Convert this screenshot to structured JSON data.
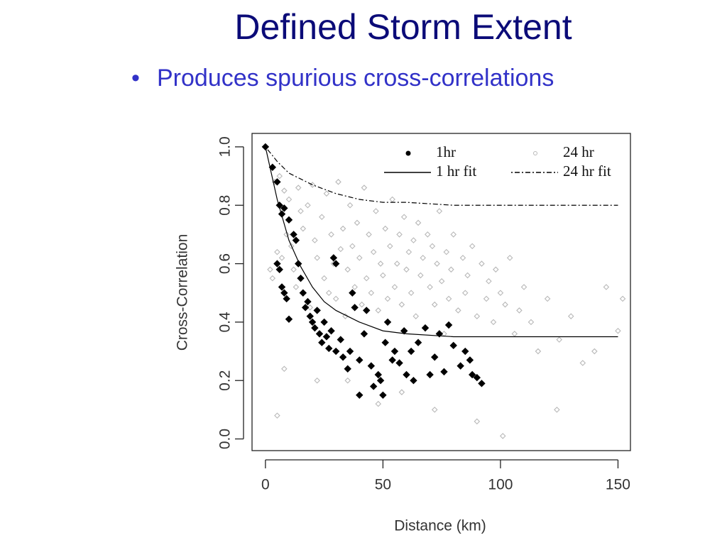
{
  "slide": {
    "title": "Defined Storm Extent",
    "bullet": "Produces spurious cross-correlations"
  },
  "chart_data": {
    "type": "scatter",
    "x_label": "Distance (km)",
    "y_label": "Cross-Correlation",
    "xlim": [
      -5.7,
      155.3
    ],
    "ylim": [
      -0.04,
      1.046
    ],
    "xticks": [
      0,
      50,
      100,
      150
    ],
    "yticks": [
      {
        "value": 0,
        "label": "0.0"
      },
      {
        "value": 0.2,
        "label": "0.2"
      },
      {
        "value": 0.4,
        "label": "0.4"
      },
      {
        "value": 0.6,
        "label": "0.6"
      },
      {
        "value": 0.8,
        "label": "0.8"
      },
      {
        "value": 1,
        "label": "1.0"
      }
    ],
    "legend": "top-right",
    "series": [
      {
        "name": "1hr",
        "style": "points",
        "color": "#000000",
        "x": [
          0,
          3,
          5,
          6,
          7,
          8,
          10,
          5,
          6,
          7,
          8,
          9,
          10,
          12,
          13,
          14,
          15,
          16,
          17,
          18,
          19,
          20,
          21,
          22,
          23,
          24,
          25,
          26,
          27,
          28,
          29,
          30,
          30,
          32,
          33,
          35,
          36,
          37,
          38,
          40,
          40,
          42,
          43,
          45,
          46,
          48,
          49,
          50,
          51,
          52,
          54,
          55,
          57,
          59,
          60,
          62,
          63,
          65,
          68,
          70,
          72,
          74,
          76,
          78,
          80,
          83,
          85,
          87,
          88,
          90,
          92
        ],
        "values": [
          1.0,
          0.93,
          0.88,
          0.8,
          0.77,
          0.79,
          0.75,
          0.6,
          0.58,
          0.52,
          0.5,
          0.48,
          0.41,
          0.7,
          0.68,
          0.6,
          0.55,
          0.5,
          0.45,
          0.47,
          0.42,
          0.4,
          0.38,
          0.44,
          0.36,
          0.33,
          0.4,
          0.35,
          0.31,
          0.37,
          0.62,
          0.6,
          0.3,
          0.34,
          0.28,
          0.24,
          0.3,
          0.5,
          0.45,
          0.27,
          0.15,
          0.36,
          0.44,
          0.25,
          0.18,
          0.22,
          0.2,
          0.15,
          0.33,
          0.4,
          0.27,
          0.3,
          0.26,
          0.37,
          0.22,
          0.3,
          0.2,
          0.33,
          0.38,
          0.22,
          0.28,
          0.36,
          0.23,
          0.39,
          0.32,
          0.25,
          0.3,
          0.27,
          0.22,
          0.21,
          0.19
        ]
      },
      {
        "name": "24 hr",
        "style": "points",
        "color": "#b8b8b8",
        "x": [
          2,
          3,
          4,
          5,
          6,
          7,
          8,
          9,
          10,
          11,
          12,
          13,
          14,
          15,
          16,
          18,
          19,
          20,
          21,
          22,
          24,
          25,
          26,
          27,
          28,
          29,
          30,
          31,
          32,
          33,
          34,
          35,
          36,
          37,
          38,
          39,
          40,
          41,
          42,
          43,
          44,
          45,
          46,
          47,
          48,
          49,
          50,
          51,
          52,
          53,
          54,
          55,
          56,
          57,
          58,
          59,
          60,
          61,
          62,
          63,
          64,
          65,
          66,
          67,
          68,
          69,
          70,
          71,
          72,
          73,
          74,
          75,
          76,
          77,
          78,
          79,
          80,
          82,
          84,
          85,
          86,
          88,
          90,
          92,
          94,
          95,
          97,
          98,
          100,
          102,
          104,
          106,
          108,
          110,
          113,
          116,
          120,
          125,
          130,
          135,
          140,
          145,
          150,
          152,
          5,
          8,
          22,
          35,
          48,
          58,
          72,
          90,
          101,
          124
        ],
        "values": [
          0.58,
          0.55,
          0.88,
          0.64,
          0.9,
          0.62,
          0.85,
          0.7,
          0.82,
          0.66,
          0.58,
          0.52,
          0.86,
          0.78,
          0.72,
          0.8,
          0.45,
          0.87,
          0.68,
          0.62,
          0.76,
          0.55,
          0.84,
          0.5,
          0.7,
          0.6,
          0.48,
          0.88,
          0.65,
          0.72,
          0.42,
          0.58,
          0.8,
          0.66,
          0.52,
          0.74,
          0.62,
          0.46,
          0.86,
          0.55,
          0.7,
          0.5,
          0.64,
          0.78,
          0.44,
          0.6,
          0.56,
          0.72,
          0.48,
          0.66,
          0.82,
          0.52,
          0.6,
          0.7,
          0.46,
          0.76,
          0.58,
          0.64,
          0.5,
          0.68,
          0.42,
          0.74,
          0.56,
          0.62,
          0.38,
          0.7,
          0.52,
          0.66,
          0.46,
          0.6,
          0.78,
          0.54,
          0.36,
          0.64,
          0.48,
          0.58,
          0.7,
          0.44,
          0.62,
          0.5,
          0.56,
          0.66,
          0.42,
          0.6,
          0.48,
          0.54,
          0.4,
          0.58,
          0.5,
          0.46,
          0.62,
          0.36,
          0.44,
          0.52,
          0.4,
          0.3,
          0.48,
          0.34,
          0.42,
          0.26,
          0.3,
          0.52,
          0.37,
          0.48,
          0.08,
          0.24,
          0.2,
          0.2,
          0.12,
          0.16,
          0.1,
          0.06,
          0.01,
          0.1
        ]
      },
      {
        "name": "1 hr fit",
        "style": "line",
        "color": "#000000",
        "x": [
          0,
          5,
          10,
          15,
          20,
          25,
          30,
          40,
          50,
          60,
          80,
          100,
          150
        ],
        "values": [
          1.0,
          0.82,
          0.68,
          0.59,
          0.52,
          0.47,
          0.44,
          0.4,
          0.37,
          0.36,
          0.35,
          0.35,
          0.35
        ]
      },
      {
        "name": "24 hr fit",
        "style": "dotdash",
        "color": "#000000",
        "x": [
          0,
          5,
          10,
          15,
          20,
          30,
          40,
          50,
          60,
          80,
          100,
          150
        ],
        "values": [
          1.0,
          0.95,
          0.91,
          0.89,
          0.87,
          0.84,
          0.82,
          0.81,
          0.81,
          0.8,
          0.8,
          0.8
        ]
      }
    ]
  }
}
